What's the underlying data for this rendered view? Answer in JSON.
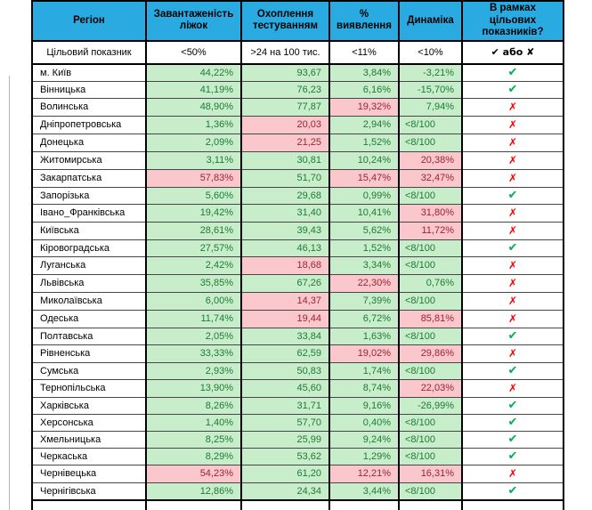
{
  "colors": {
    "header_bg": "#29ABE2",
    "good_bg": "#C8EDCB",
    "good_text": "#1E7B34",
    "bad_bg": "#FAC7CC",
    "bad_text": "#9C2330",
    "check": "#00B050",
    "cross": "#FF0000"
  },
  "icons": {
    "pass": "✔",
    "fail": "✗"
  },
  "table": {
    "columns": [
      {
        "key": "region",
        "label": "Регіон"
      },
      {
        "key": "beds",
        "label": "Завантаженість\nліжок"
      },
      {
        "key": "testing",
        "label": "Охоплення\nтестуванням"
      },
      {
        "key": "detection",
        "label": "%\nвиявлення"
      },
      {
        "key": "dynamics",
        "label": "Динаміка"
      },
      {
        "key": "result",
        "label": "В рамках\nцільових\nпоказників?"
      }
    ],
    "target_row": {
      "region": "Цільовий показник",
      "beds": "<50%",
      "testing": ">24 на 100 тис.",
      "detection": "<11%",
      "dynamics": "<10%",
      "result": "✔ або ✘"
    },
    "rows": [
      {
        "region": "м. Київ",
        "beds": {
          "v": "44,22%",
          "s": "good"
        },
        "testing": {
          "v": "93,67",
          "s": "good"
        },
        "detection": {
          "v": "3,84%",
          "s": "good"
        },
        "dynamics": {
          "v": "-3,21%",
          "s": "good"
        },
        "result": "pass"
      },
      {
        "region": "Вінницька",
        "beds": {
          "v": "41,19%",
          "s": "good"
        },
        "testing": {
          "v": "76,23",
          "s": "good"
        },
        "detection": {
          "v": "6,16%",
          "s": "good"
        },
        "dynamics": {
          "v": "-15,70%",
          "s": "good"
        },
        "result": "pass"
      },
      {
        "region": "Волинська",
        "beds": {
          "v": "48,90%",
          "s": "good"
        },
        "testing": {
          "v": "77,87",
          "s": "good"
        },
        "detection": {
          "v": "19,32%",
          "s": "bad"
        },
        "dynamics": {
          "v": "7,94%",
          "s": "good"
        },
        "result": "fail"
      },
      {
        "region": "Дніпропетровська",
        "beds": {
          "v": "1,36%",
          "s": "good"
        },
        "testing": {
          "v": "20,03",
          "s": "bad"
        },
        "detection": {
          "v": "2,94%",
          "s": "good"
        },
        "dynamics": {
          "v": "<8/100",
          "s": "good"
        },
        "result": "fail"
      },
      {
        "region": "Донецька",
        "beds": {
          "v": "2,09%",
          "s": "good"
        },
        "testing": {
          "v": "21,25",
          "s": "bad"
        },
        "detection": {
          "v": "1,52%",
          "s": "good"
        },
        "dynamics": {
          "v": "<8/100",
          "s": "good"
        },
        "result": "fail"
      },
      {
        "region": "Житомирська",
        "beds": {
          "v": "3,11%",
          "s": "good"
        },
        "testing": {
          "v": "30,81",
          "s": "good"
        },
        "detection": {
          "v": "10,24%",
          "s": "good"
        },
        "dynamics": {
          "v": "20,38%",
          "s": "bad"
        },
        "result": "fail"
      },
      {
        "region": "Закарпатська",
        "beds": {
          "v": "57,83%",
          "s": "bad"
        },
        "testing": {
          "v": "51,70",
          "s": "good"
        },
        "detection": {
          "v": "15,47%",
          "s": "bad"
        },
        "dynamics": {
          "v": "32,47%",
          "s": "bad"
        },
        "result": "fail"
      },
      {
        "region": "Запорізька",
        "beds": {
          "v": "5,60%",
          "s": "good"
        },
        "testing": {
          "v": "29,68",
          "s": "good"
        },
        "detection": {
          "v": "0,99%",
          "s": "good"
        },
        "dynamics": {
          "v": "<8/100",
          "s": "good"
        },
        "result": "pass"
      },
      {
        "region": "Івано_Франківська",
        "beds": {
          "v": "19,42%",
          "s": "good"
        },
        "testing": {
          "v": "31,40",
          "s": "good"
        },
        "detection": {
          "v": "10,41%",
          "s": "good"
        },
        "dynamics": {
          "v": "31,80%",
          "s": "bad"
        },
        "result": "fail"
      },
      {
        "region": "Київська",
        "beds": {
          "v": "28,61%",
          "s": "good"
        },
        "testing": {
          "v": "39,43",
          "s": "good"
        },
        "detection": {
          "v": "5,62%",
          "s": "good"
        },
        "dynamics": {
          "v": "11,72%",
          "s": "bad"
        },
        "result": "fail"
      },
      {
        "region": "Кіровоградська",
        "beds": {
          "v": "27,57%",
          "s": "good"
        },
        "testing": {
          "v": "46,13",
          "s": "good"
        },
        "detection": {
          "v": "1,52%",
          "s": "good"
        },
        "dynamics": {
          "v": "<8/100",
          "s": "good"
        },
        "result": "pass"
      },
      {
        "region": "Луганська",
        "beds": {
          "v": "2,42%",
          "s": "good"
        },
        "testing": {
          "v": "18,68",
          "s": "bad"
        },
        "detection": {
          "v": "3,34%",
          "s": "good"
        },
        "dynamics": {
          "v": "<8/100",
          "s": "good"
        },
        "result": "fail"
      },
      {
        "region": "Львівська",
        "beds": {
          "v": "35,85%",
          "s": "good"
        },
        "testing": {
          "v": "67,26",
          "s": "good"
        },
        "detection": {
          "v": "22,30%",
          "s": "bad"
        },
        "dynamics": {
          "v": "0,76%",
          "s": "good"
        },
        "result": "fail"
      },
      {
        "region": "Миколаївська",
        "beds": {
          "v": "6,00%",
          "s": "good"
        },
        "testing": {
          "v": "14,37",
          "s": "bad"
        },
        "detection": {
          "v": "7,39%",
          "s": "good"
        },
        "dynamics": {
          "v": "<8/100",
          "s": "good"
        },
        "result": "fail"
      },
      {
        "region": "Одеська",
        "beds": {
          "v": "11,74%",
          "s": "good"
        },
        "testing": {
          "v": "19,44",
          "s": "bad"
        },
        "detection": {
          "v": "6,72%",
          "s": "good"
        },
        "dynamics": {
          "v": "85,81%",
          "s": "bad"
        },
        "result": "fail"
      },
      {
        "region": "Полтавська",
        "beds": {
          "v": "2,05%",
          "s": "good"
        },
        "testing": {
          "v": "33,84",
          "s": "good"
        },
        "detection": {
          "v": "1,63%",
          "s": "good"
        },
        "dynamics": {
          "v": "<8/100",
          "s": "good"
        },
        "result": "pass"
      },
      {
        "region": "Рівненська",
        "beds": {
          "v": "33,33%",
          "s": "good"
        },
        "testing": {
          "v": "62,59",
          "s": "good"
        },
        "detection": {
          "v": "19,02%",
          "s": "bad"
        },
        "dynamics": {
          "v": "29,86%",
          "s": "bad"
        },
        "result": "fail"
      },
      {
        "region": "Сумська",
        "beds": {
          "v": "2,93%",
          "s": "good"
        },
        "testing": {
          "v": "50,83",
          "s": "good"
        },
        "detection": {
          "v": "1,74%",
          "s": "good"
        },
        "dynamics": {
          "v": "<8/100",
          "s": "good"
        },
        "result": "pass"
      },
      {
        "region": "Тернопільська",
        "beds": {
          "v": "13,90%",
          "s": "good"
        },
        "testing": {
          "v": "45,60",
          "s": "good"
        },
        "detection": {
          "v": "8,74%",
          "s": "good"
        },
        "dynamics": {
          "v": "22,03%",
          "s": "bad"
        },
        "result": "fail"
      },
      {
        "region": "Харківська",
        "beds": {
          "v": "8,26%",
          "s": "good"
        },
        "testing": {
          "v": "31,71",
          "s": "good"
        },
        "detection": {
          "v": "9,16%",
          "s": "good"
        },
        "dynamics": {
          "v": "-26,99%",
          "s": "good"
        },
        "result": "pass"
      },
      {
        "region": "Херсонська",
        "beds": {
          "v": "1,40%",
          "s": "good"
        },
        "testing": {
          "v": "57,70",
          "s": "good"
        },
        "detection": {
          "v": "0,40%",
          "s": "good"
        },
        "dynamics": {
          "v": "<8/100",
          "s": "good"
        },
        "result": "pass"
      },
      {
        "region": "Хмельницька",
        "beds": {
          "v": "8,25%",
          "s": "good"
        },
        "testing": {
          "v": "25,99",
          "s": "good"
        },
        "detection": {
          "v": "9,24%",
          "s": "good"
        },
        "dynamics": {
          "v": "<8/100",
          "s": "good"
        },
        "result": "pass"
      },
      {
        "region": "Черкаська",
        "beds": {
          "v": "8,29%",
          "s": "good"
        },
        "testing": {
          "v": "53,62",
          "s": "good"
        },
        "detection": {
          "v": "1,29%",
          "s": "good"
        },
        "dynamics": {
          "v": "<8/100",
          "s": "good"
        },
        "result": "pass"
      },
      {
        "region": "Чернівецька",
        "beds": {
          "v": "54,23%",
          "s": "bad"
        },
        "testing": {
          "v": "61,20",
          "s": "good"
        },
        "detection": {
          "v": "12,21%",
          "s": "bad"
        },
        "dynamics": {
          "v": "16,31%",
          "s": "bad"
        },
        "result": "fail"
      },
      {
        "region": "Чернігівська",
        "beds": {
          "v": "12,86%",
          "s": "good"
        },
        "testing": {
          "v": "24,34",
          "s": "good"
        },
        "detection": {
          "v": "3,44%",
          "s": "good"
        },
        "dynamics": {
          "v": "<8/100",
          "s": "good"
        },
        "result": "pass"
      }
    ]
  }
}
